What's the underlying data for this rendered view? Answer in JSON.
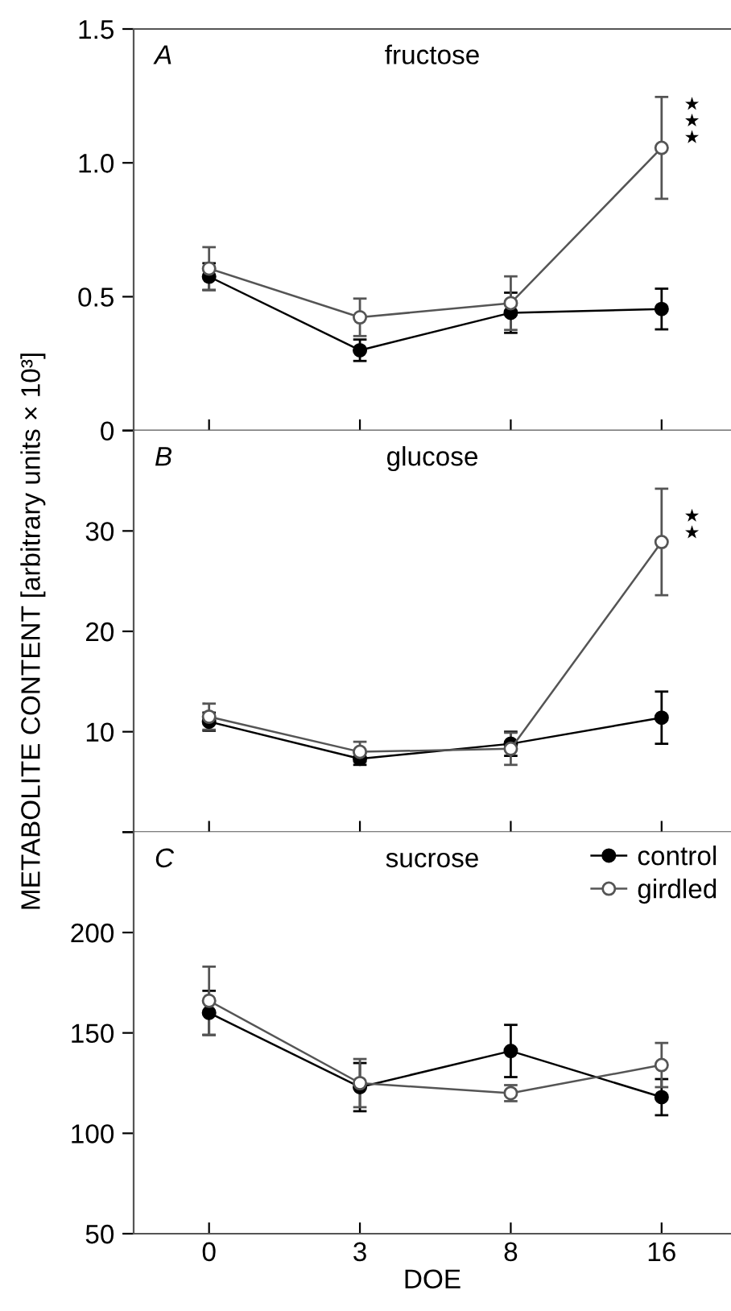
{
  "chart_data": [
    {
      "type": "line",
      "title": "fructose",
      "categories": [
        "0",
        "3",
        "8",
        "16"
      ],
      "ylim": [
        0,
        1.5
      ],
      "yticks": [
        0,
        0.5,
        {
          "value": 1.0,
          "label": "1.0"
        },
        {
          "value": 1.5,
          "label": "1.5"
        }
      ],
      "tick_labels": "y",
      "marker": "circle",
      "grid": false,
      "legend": false,
      "annotations": [
        "A",
        {
          "text": "★\n★\n★",
          "x": "16",
          "y": 1.06
        }
      ],
      "series": [
        {
          "color": "#000000",
          "values": [
            0.575,
            0.3,
            0.44,
            0.454
          ],
          "errors": [
            0.05,
            0.04,
            0.075,
            0.076
          ]
        },
        {
          "color": "#555555",
          "values": [
            0.605,
            0.423,
            0.476,
            1.056
          ],
          "errors": [
            0.08,
            0.07,
            0.1,
            0.19
          ]
        }
      ]
    },
    {
      "type": "line",
      "title": "glucose",
      "categories": [
        "0",
        "3",
        "8",
        "16"
      ],
      "ylim": [
        0,
        40
      ],
      "yticks": [
        {
          "value": 0,
          "label": null
        },
        10,
        20,
        30,
        {
          "value": 40,
          "label": null
        }
      ],
      "tick_labels": "y",
      "marker": "circle",
      "grid": false,
      "legend": false,
      "annotations": [
        "B",
        {
          "text": "★\n★",
          "x": "16",
          "y": 28.9
        }
      ],
      "series": [
        {
          "color": "#000000",
          "values": [
            11.0,
            7.3,
            8.8,
            11.4
          ],
          "errors": [
            0.9,
            0.6,
            1.2,
            2.6
          ]
        },
        {
          "color": "#555555",
          "values": [
            11.5,
            8.0,
            8.3,
            28.9
          ],
          "errors": [
            1.3,
            1.0,
            1.6,
            5.3
          ]
        }
      ]
    },
    {
      "type": "line",
      "title": "sucrose",
      "categories": [
        "0",
        "3",
        "8",
        "16"
      ],
      "xlabel": "DOE",
      "ylim": [
        50,
        250
      ],
      "yticks": [
        50,
        100,
        150,
        200,
        {
          "value": 250,
          "label": null
        }
      ],
      "marker": "circle",
      "grid": false,
      "legend": "top right",
      "ylabel": "METABOLITE CONTENT [arbitrary units × 10³]",
      "annotations": [
        "C"
      ],
      "series": [
        {
          "name": "control",
          "color": "#000000",
          "values": [
            160,
            123,
            141,
            118
          ],
          "errors": [
            11,
            12,
            13,
            9
          ]
        },
        {
          "name": "girdled",
          "color": "#555555",
          "values": [
            166,
            125,
            120,
            134
          ],
          "errors": [
            17,
            12,
            4,
            11
          ]
        }
      ]
    }
  ]
}
